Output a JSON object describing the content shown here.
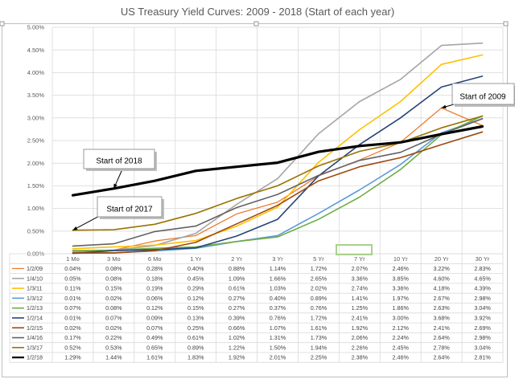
{
  "chart_data": {
    "type": "line",
    "title": "US Treasury Yield Curves: 2009 - 2018 (Start of each year)",
    "categories": [
      "1 Mo",
      "3 Mo",
      "6 Mo",
      "1 Yr",
      "2 Yr",
      "3 Yr",
      "5 Yr",
      "7 Yr",
      "10 Yr",
      "20 Yr",
      "30 Yr"
    ],
    "yticks": [
      "0.00%",
      "0.50%",
      "1.00%",
      "1.50%",
      "2.00%",
      "2.50%",
      "3.00%",
      "3.50%",
      "4.00%",
      "4.50%",
      "5.00%"
    ],
    "ylim": [
      0,
      5
    ],
    "grid": true,
    "series": [
      {
        "name": "1/2/09",
        "color": "#ed7d31",
        "width": 1.3,
        "values": [
          0.04,
          0.08,
          0.28,
          0.4,
          0.88,
          1.14,
          1.72,
          2.07,
          2.46,
          3.22,
          2.83
        ],
        "labels": [
          "0.04%",
          "0.08%",
          "0.28%",
          "0.40%",
          "0.88%",
          "1.14%",
          "1.72%",
          "2.07%",
          "2.46%",
          "3.22%",
          "2.83%"
        ]
      },
      {
        "name": "1/4/10",
        "color": "#a5a5a5",
        "width": 1.6,
        "values": [
          0.05,
          0.08,
          0.18,
          0.45,
          1.09,
          1.66,
          2.65,
          3.36,
          3.85,
          4.6,
          4.65
        ],
        "labels": [
          "0.05%",
          "0.08%",
          "0.18%",
          "0.45%",
          "1.09%",
          "1.66%",
          "2.65%",
          "3.36%",
          "3.85%",
          "4.60%",
          "4.65%"
        ]
      },
      {
        "name": "1/3/11",
        "color": "#ffc000",
        "width": 1.6,
        "values": [
          0.11,
          0.15,
          0.19,
          0.29,
          0.61,
          1.03,
          2.02,
          2.74,
          3.36,
          4.18,
          4.39
        ],
        "labels": [
          "0.11%",
          "0.15%",
          "0.19%",
          "0.29%",
          "0.61%",
          "1.03%",
          "2.02%",
          "2.74%",
          "3.36%",
          "4.18%",
          "4.39%"
        ]
      },
      {
        "name": "1/3/12",
        "color": "#5b9bd5",
        "width": 1.6,
        "values": [
          0.01,
          0.02,
          0.06,
          0.12,
          0.27,
          0.4,
          0.89,
          1.41,
          1.97,
          2.67,
          2.98
        ],
        "labels": [
          "0.01%",
          "0.02%",
          "0.06%",
          "0.12%",
          "0.27%",
          "0.40%",
          "0.89%",
          "1.41%",
          "1.97%",
          "2.67%",
          "2.98%"
        ]
      },
      {
        "name": "1/2/13",
        "color": "#70ad47",
        "width": 1.6,
        "values": [
          0.07,
          0.08,
          0.12,
          0.15,
          0.27,
          0.37,
          0.76,
          1.25,
          1.86,
          2.63,
          3.04
        ],
        "labels": [
          "0.07%",
          "0.08%",
          "0.12%",
          "0.15%",
          "0.27%",
          "0.37%",
          "0.76%",
          "1.25%",
          "1.86%",
          "2.63%",
          "3.04%"
        ]
      },
      {
        "name": "1/2/14",
        "color": "#264478",
        "width": 1.6,
        "values": [
          0.01,
          0.07,
          0.09,
          0.13,
          0.39,
          0.76,
          1.72,
          2.41,
          3.0,
          3.68,
          3.92
        ],
        "labels": [
          "0.01%",
          "0.07%",
          "0.09%",
          "0.13%",
          "0.39%",
          "0.76%",
          "1.72%",
          "2.41%",
          "3.00%",
          "3.68%",
          "3.92%"
        ]
      },
      {
        "name": "1/2/15",
        "color": "#9e480e",
        "width": 1.6,
        "values": [
          0.02,
          0.02,
          0.07,
          0.25,
          0.66,
          1.07,
          1.61,
          1.92,
          2.12,
          2.41,
          2.69
        ],
        "labels": [
          "0.02%",
          "0.02%",
          "0.07%",
          "0.25%",
          "0.66%",
          "1.07%",
          "1.61%",
          "1.92%",
          "2.12%",
          "2.41%",
          "2.69%"
        ]
      },
      {
        "name": "1/4/16",
        "color": "#636363",
        "width": 1.6,
        "values": [
          0.17,
          0.22,
          0.49,
          0.61,
          1.02,
          1.31,
          1.73,
          2.06,
          2.24,
          2.64,
          2.98
        ],
        "labels": [
          "0.17%",
          "0.22%",
          "0.49%",
          "0.61%",
          "1.02%",
          "1.31%",
          "1.73%",
          "2.06%",
          "2.24%",
          "2.64%",
          "2.98%"
        ]
      },
      {
        "name": "1/3/17",
        "color": "#997300",
        "width": 1.6,
        "values": [
          0.52,
          0.53,
          0.65,
          0.89,
          1.22,
          1.5,
          1.94,
          2.26,
          2.45,
          2.78,
          3.04
        ],
        "labels": [
          "0.52%",
          "0.53%",
          "0.65%",
          "0.89%",
          "1.22%",
          "1.50%",
          "1.94%",
          "2.26%",
          "2.45%",
          "2.78%",
          "3.04%"
        ]
      },
      {
        "name": "1/2/18",
        "color": "#000000",
        "width": 3.2,
        "values": [
          1.29,
          1.44,
          1.61,
          1.83,
          1.92,
          2.01,
          2.25,
          2.38,
          2.46,
          2.64,
          2.81
        ],
        "labels": [
          "1.29%",
          "1.44%",
          "1.61%",
          "1.83%",
          "1.92%",
          "2.01%",
          "2.25%",
          "2.38%",
          "2.46%",
          "2.64%",
          "2.81%"
        ]
      }
    ],
    "annotations": [
      {
        "id": "start-2018",
        "text": "Start of 2018",
        "target_series": "1/2/18",
        "target_category": "3 Mo"
      },
      {
        "id": "start-2017",
        "text": "Start of 2017",
        "target_series": "1/3/17",
        "target_category": "1 Mo"
      },
      {
        "id": "start-2009",
        "text": "Start of 2009",
        "target_series": "1/2/09",
        "target_category": "20 Yr"
      }
    ]
  }
}
